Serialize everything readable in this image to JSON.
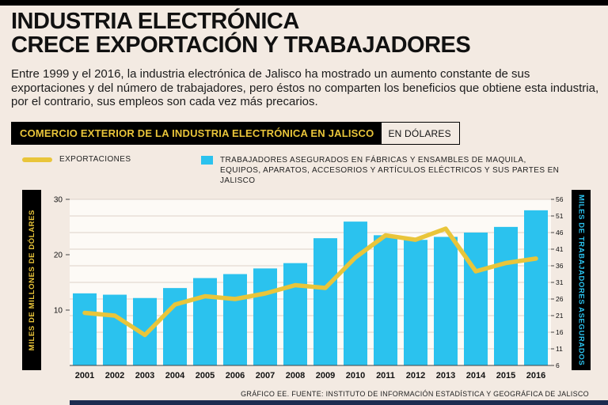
{
  "page": {
    "title_line1": "INDUSTRIA ELECTRÓNICA",
    "title_line2": "CRECE EXPORTACIÓN Y TRABAJADORES",
    "intro": "Entre 1999 y el 2016, la industria electrónica de Jalisco ha mostrado un aumento constante de sus exportaciones y del número de trabajadores, pero éstos no comparten los beneficios que obtiene esta industria, por el contrario, sus empleos son cada vez más precarios.",
    "footer": "GRÁFICO EE. FUENTE: INSTITUTO DE INFORMACIÓN ESTADÍSTICA Y GEOGRÁFICA DE JALISCO"
  },
  "chart_header": {
    "title": "COMERCIO EXTERIOR DE LA INDUSTRIA ELECTRÓNICA EN JALISCO",
    "suffix": "EN DÓLARES"
  },
  "legend": {
    "exports_label": "EXPORTACIONES",
    "workers_label": "TRABAJADORES ASEGURADOS EN FÁBRICAS Y ENSAMBLES DE MAQUILA, EQUIPOS, APARATOS, ACCESORIOS Y ARTÍCULOS ELÉCTRICOS Y SUS PARTES EN JALISCO"
  },
  "axes": {
    "left_label": "MILES DE MILLONES DE DÓLARES",
    "right_label": "MILES DE TRABAJADORES ASEGURADOS",
    "left_ticks": [
      30,
      20,
      10
    ],
    "right_ticks": [
      56,
      51,
      46,
      41,
      36,
      31,
      26,
      21,
      16,
      11,
      6
    ]
  },
  "colors": {
    "exports": "#e9c53a",
    "workers": "#2bc2ee",
    "background": "#f3eae2",
    "plot_background": "#fdfaf6",
    "grid": "#ddd3c8",
    "navy": "#1d2b50"
  },
  "chart_data": {
    "type": "bar",
    "title": "Comercio exterior de la industria electrónica en Jalisco (en dólares)",
    "categories": [
      "2001",
      "2002",
      "2003",
      "2004",
      "2005",
      "2006",
      "2007",
      "2008",
      "2009",
      "2010",
      "2011",
      "2012",
      "2013",
      "2014",
      "2015",
      "2016"
    ],
    "series": [
      {
        "name": "Exportaciones",
        "type": "line",
        "axis": "left",
        "values": [
          9.5,
          9.0,
          5.5,
          11.0,
          12.5,
          12.0,
          13.0,
          14.5,
          14.0,
          19.5,
          23.5,
          22.7,
          24.7,
          17.0,
          18.5,
          19.3
        ]
      },
      {
        "name": "Trabajadores asegurados",
        "type": "bar",
        "axis": "right",
        "values": [
          27.7,
          27.3,
          26.3,
          29.3,
          32.3,
          33.5,
          35.2,
          36.8,
          44.3,
          49.3,
          45.2,
          43.8,
          44.7,
          46.0,
          47.7,
          52.7
        ]
      }
    ],
    "left_axis": {
      "label": "Miles de millones de dólares",
      "range": [
        0,
        30
      ]
    },
    "right_axis": {
      "label": "Miles de trabajadores asegurados",
      "range": [
        6,
        56
      ]
    },
    "grid": true,
    "legend_position": "top"
  }
}
